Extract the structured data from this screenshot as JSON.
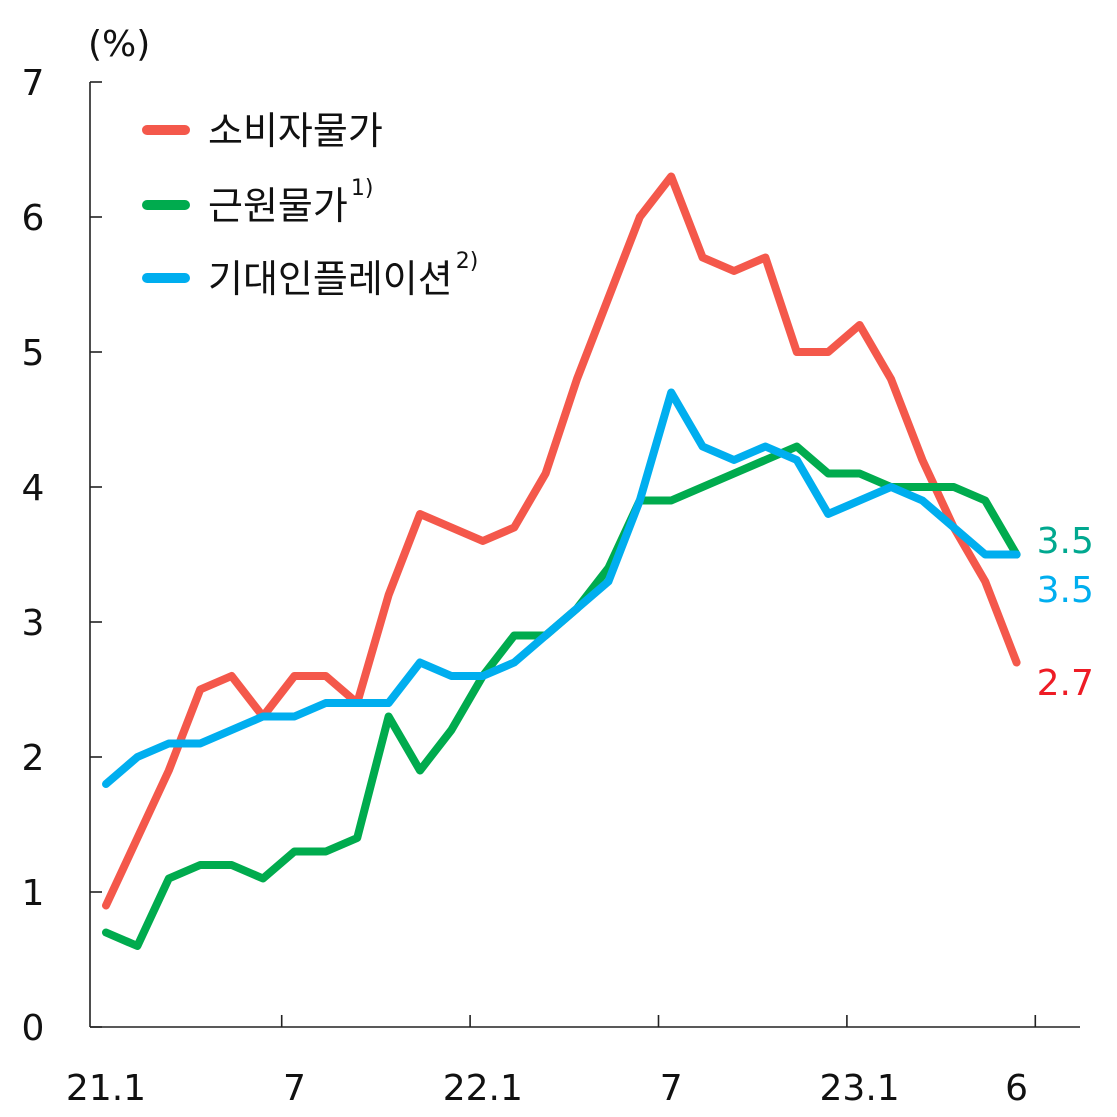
{
  "chart_data": {
    "type": "line",
    "unit_label": "(%)",
    "ylim": [
      0,
      7
    ],
    "yticks": [
      "0",
      "1",
      "2",
      "3",
      "4",
      "5",
      "6",
      "7"
    ],
    "x_tick_labels": [
      {
        "index": 0,
        "label": "21.1"
      },
      {
        "index": 6,
        "label": "7"
      },
      {
        "index": 12,
        "label": "22.1"
      },
      {
        "index": 18,
        "label": "7"
      },
      {
        "index": 24,
        "label": "23.1"
      },
      {
        "index": 29,
        "label": "6"
      }
    ],
    "x_count": 30,
    "legend_position": "top-left",
    "grid": false,
    "series": [
      {
        "name": "소비자물가",
        "footnote": "",
        "color": "#f4584b",
        "label_color": "#ee1c25",
        "end_label": "2.7",
        "values": [
          0.9,
          1.4,
          1.9,
          2.5,
          2.6,
          2.3,
          2.6,
          2.6,
          2.4,
          3.2,
          3.8,
          3.7,
          3.6,
          3.7,
          4.1,
          4.8,
          5.4,
          6.0,
          6.3,
          5.7,
          5.6,
          5.7,
          5.0,
          5.0,
          5.2,
          4.8,
          4.2,
          3.7,
          3.3,
          2.7
        ]
      },
      {
        "name": "근원물가",
        "footnote": "1)",
        "color": "#00ab4e",
        "label_color": "#00a88f",
        "end_label": "3.5",
        "values": [
          0.7,
          0.6,
          1.1,
          1.2,
          1.2,
          1.1,
          1.3,
          1.3,
          1.4,
          2.3,
          1.9,
          2.2,
          2.6,
          2.9,
          2.9,
          3.1,
          3.4,
          3.9,
          3.9,
          4.0,
          4.1,
          4.2,
          4.3,
          4.1,
          4.1,
          4.0,
          4.0,
          4.0,
          3.9,
          3.5
        ]
      },
      {
        "name": "기대인플레이션",
        "footnote": "2)",
        "color": "#00aeef",
        "label_color": "#00aeef",
        "end_label": "3.5",
        "values": [
          1.8,
          2.0,
          2.1,
          2.1,
          2.2,
          2.3,
          2.3,
          2.4,
          2.4,
          2.4,
          2.7,
          2.6,
          2.6,
          2.7,
          2.9,
          3.1,
          3.3,
          3.9,
          4.7,
          4.3,
          4.2,
          4.3,
          4.2,
          3.8,
          3.9,
          4.0,
          3.9,
          3.7,
          3.5,
          3.5
        ]
      }
    ]
  }
}
